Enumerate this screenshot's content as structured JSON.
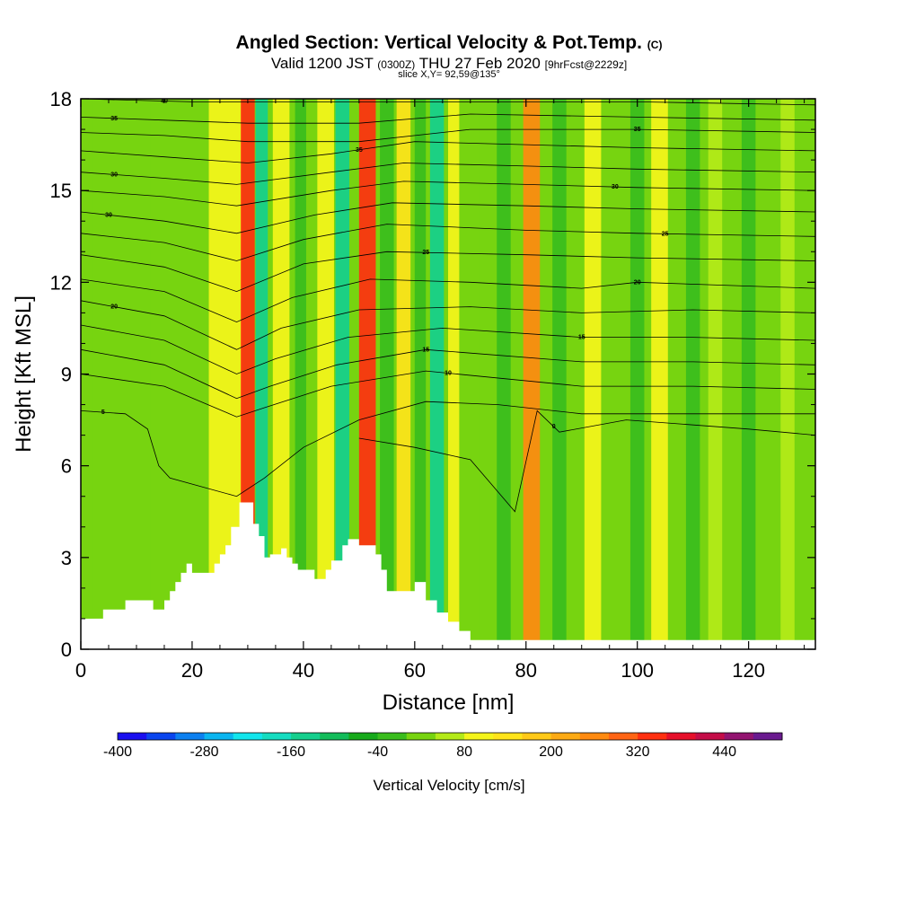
{
  "title": {
    "main": "Angled Section: Vertical Velocity & Pot.Temp.",
    "main_suffix": "(C)",
    "valid_prefix": "Valid 1200 JST",
    "valid_z": "(0300Z)",
    "valid_date": "THU 27 Feb 2020",
    "valid_fcst": "[9hrFcst@2229z]",
    "slice": "slice X,Y= 92,59@135°"
  },
  "chart_data": {
    "type": "heatmap",
    "title": "Angled Section: Vertical Velocity & Pot.Temp.",
    "xlabel": "Distance [nm]",
    "ylabel": "Height [Kft MSL]",
    "xlim": [
      0,
      132
    ],
    "ylim": [
      0,
      18
    ],
    "x_ticks": [
      0,
      20,
      40,
      60,
      80,
      100,
      120
    ],
    "y_ticks": [
      0,
      3,
      6,
      9,
      12,
      15,
      18
    ],
    "background_level": 0,
    "velocity_bands": [
      {
        "x": 4,
        "width": 4,
        "value": 30
      },
      {
        "x": 14,
        "width": 3,
        "value": 20
      },
      {
        "x": 26,
        "width": 6,
        "value": 100
      },
      {
        "x": 30,
        "width": 2.5,
        "value": 320
      },
      {
        "x": 32.5,
        "width": 2.2,
        "value": -160
      },
      {
        "x": 36,
        "width": 3,
        "value": 80
      },
      {
        "x": 39.5,
        "width": 2,
        "value": -40
      },
      {
        "x": 44,
        "width": 3,
        "value": 80
      },
      {
        "x": 47,
        "width": 2.5,
        "value": -160
      },
      {
        "x": 51.5,
        "width": 3,
        "value": 320
      },
      {
        "x": 55,
        "width": 2.5,
        "value": -40
      },
      {
        "x": 58,
        "width": 2.5,
        "value": 120
      },
      {
        "x": 61,
        "width": 2,
        "value": -40
      },
      {
        "x": 64,
        "width": 2.5,
        "value": -160
      },
      {
        "x": 67,
        "width": 2,
        "value": 80
      },
      {
        "x": 73,
        "width": 3,
        "value": 20
      },
      {
        "x": 76,
        "width": 2.5,
        "value": -40
      },
      {
        "x": 81,
        "width": 3,
        "value": 260
      },
      {
        "x": 86,
        "width": 2.5,
        "value": -40
      },
      {
        "x": 92,
        "width": 3,
        "value": 80
      },
      {
        "x": 100,
        "width": 2.5,
        "value": -40
      },
      {
        "x": 104,
        "width": 3,
        "value": 80
      },
      {
        "x": 110,
        "width": 2.5,
        "value": -40
      },
      {
        "x": 114,
        "width": 2.5,
        "value": 60
      },
      {
        "x": 120,
        "width": 2.5,
        "value": -40
      },
      {
        "x": 127,
        "width": 2.5,
        "value": 60
      }
    ],
    "terrain": {
      "x": [
        0,
        4,
        4,
        8,
        8,
        13,
        13,
        15,
        15,
        16,
        16,
        17,
        17,
        18,
        18,
        19,
        19,
        20,
        20,
        24,
        24,
        25,
        25,
        26,
        26,
        27,
        27,
        28.5,
        28.5,
        31,
        31,
        32,
        32,
        33,
        33,
        34,
        34,
        36,
        36,
        37,
        37,
        38,
        38,
        39,
        39,
        42,
        42,
        44,
        44,
        45,
        45,
        47,
        47,
        48,
        48,
        50,
        50,
        53,
        53,
        54,
        54,
        55,
        55,
        60,
        60,
        62,
        62,
        64,
        64,
        66,
        66,
        68,
        68,
        70,
        70,
        72,
        72,
        132
      ],
      "y": [
        1.0,
        1.0,
        1.3,
        1.3,
        1.6,
        1.6,
        1.3,
        1.3,
        1.6,
        1.6,
        1.9,
        1.9,
        2.2,
        2.2,
        2.5,
        2.5,
        2.8,
        2.8,
        2.5,
        2.5,
        2.8,
        2.8,
        3.1,
        3.1,
        3.4,
        3.4,
        4.0,
        4.0,
        4.8,
        4.8,
        4.1,
        4.1,
        3.7,
        3.7,
        3.0,
        3.0,
        3.1,
        3.1,
        3.3,
        3.3,
        3.0,
        3.0,
        2.8,
        2.8,
        2.6,
        2.6,
        2.3,
        2.3,
        2.6,
        2.6,
        2.9,
        2.9,
        3.4,
        3.4,
        3.6,
        3.6,
        3.4,
        3.4,
        3.1,
        3.1,
        2.6,
        2.6,
        1.9,
        1.9,
        2.2,
        2.2,
        1.6,
        1.6,
        1.2,
        1.2,
        0.9,
        0.9,
        0.6,
        0.6,
        0.3,
        0.3,
        0.3,
        0.3
      ]
    },
    "theta_isolines": [
      {
        "label": "40",
        "label_x": 15,
        "points": [
          [
            0,
            18.0
          ],
          [
            20,
            17.9
          ],
          [
            40,
            17.9
          ],
          [
            60,
            17.9
          ],
          [
            80,
            17.9
          ],
          [
            100,
            17.9
          ],
          [
            132,
            17.8
          ]
        ]
      },
      {
        "label": "35",
        "label_x": 6,
        "points": [
          [
            0,
            17.4
          ],
          [
            15,
            17.3
          ],
          [
            30,
            17.2
          ],
          [
            50,
            17.2
          ],
          [
            70,
            17.5
          ],
          [
            100,
            17.4
          ],
          [
            132,
            17.3
          ]
        ]
      },
      {
        "label": "35",
        "label_x": 100,
        "points": [
          [
            0,
            16.9
          ],
          [
            15,
            16.8
          ],
          [
            30,
            16.6
          ],
          [
            50,
            16.6
          ],
          [
            70,
            17.0
          ],
          [
            100,
            17.0
          ],
          [
            132,
            16.9
          ]
        ]
      },
      {
        "label": "35",
        "label_x": 50,
        "points": [
          [
            0,
            16.3
          ],
          [
            15,
            16.1
          ],
          [
            30,
            15.9
          ],
          [
            45,
            16.2
          ],
          [
            60,
            16.6
          ],
          [
            80,
            16.5
          ],
          [
            100,
            16.4
          ],
          [
            132,
            16.3
          ]
        ]
      },
      {
        "label": "30",
        "label_x": 6,
        "points": [
          [
            0,
            15.6
          ],
          [
            15,
            15.4
          ],
          [
            28,
            15.2
          ],
          [
            45,
            15.6
          ],
          [
            58,
            15.9
          ],
          [
            80,
            15.8
          ],
          [
            100,
            15.7
          ],
          [
            132,
            15.6
          ]
        ]
      },
      {
        "label": "30",
        "label_x": 96,
        "points": [
          [
            0,
            15.0
          ],
          [
            15,
            14.8
          ],
          [
            28,
            14.5
          ],
          [
            45,
            15.0
          ],
          [
            58,
            15.3
          ],
          [
            80,
            15.2
          ],
          [
            100,
            15.1
          ],
          [
            132,
            15.0
          ]
        ]
      },
      {
        "label": "30",
        "label_x": 5,
        "points": [
          [
            0,
            14.3
          ],
          [
            15,
            14.0
          ],
          [
            28,
            13.6
          ],
          [
            42,
            14.2
          ],
          [
            56,
            14.6
          ],
          [
            80,
            14.5
          ],
          [
            100,
            14.4
          ],
          [
            132,
            14.3
          ]
        ]
      },
      {
        "label": "25",
        "label_x": 105,
        "points": [
          [
            0,
            13.6
          ],
          [
            15,
            13.3
          ],
          [
            28,
            12.7
          ],
          [
            40,
            13.4
          ],
          [
            55,
            13.9
          ],
          [
            80,
            13.7
          ],
          [
            100,
            13.6
          ],
          [
            132,
            13.5
          ]
        ]
      },
      {
        "label": "25",
        "label_x": 62,
        "points": [
          [
            0,
            12.9
          ],
          [
            15,
            12.5
          ],
          [
            28,
            11.7
          ],
          [
            40,
            12.6
          ],
          [
            55,
            13.0
          ],
          [
            80,
            12.9
          ],
          [
            100,
            12.8
          ],
          [
            132,
            12.7
          ]
        ]
      },
      {
        "label": "20",
        "label_x": 100,
        "points": [
          [
            0,
            12.1
          ],
          [
            15,
            11.7
          ],
          [
            28,
            10.7
          ],
          [
            38,
            11.5
          ],
          [
            52,
            12.1
          ],
          [
            70,
            12.0
          ],
          [
            90,
            11.8
          ],
          [
            100,
            12.0
          ],
          [
            132,
            11.8
          ]
        ]
      },
      {
        "label": "20",
        "label_x": 6,
        "points": [
          [
            0,
            11.4
          ],
          [
            15,
            10.9
          ],
          [
            28,
            9.8
          ],
          [
            36,
            10.5
          ],
          [
            50,
            11.1
          ],
          [
            70,
            11.2
          ],
          [
            90,
            11.0
          ],
          [
            110,
            11.1
          ],
          [
            132,
            11.0
          ]
        ]
      },
      {
        "label": "15",
        "label_x": 90,
        "points": [
          [
            0,
            10.6
          ],
          [
            15,
            10.1
          ],
          [
            28,
            9.0
          ],
          [
            35,
            9.5
          ],
          [
            48,
            10.2
          ],
          [
            65,
            10.5
          ],
          [
            90,
            10.2
          ],
          [
            110,
            10.2
          ],
          [
            132,
            10.1
          ]
        ]
      },
      {
        "label": "15",
        "label_x": 62,
        "points": [
          [
            0,
            9.8
          ],
          [
            15,
            9.3
          ],
          [
            28,
            8.2
          ],
          [
            34,
            8.6
          ],
          [
            46,
            9.3
          ],
          [
            62,
            9.8
          ],
          [
            90,
            9.4
          ],
          [
            110,
            9.4
          ],
          [
            132,
            9.3
          ]
        ]
      },
      {
        "label": "10",
        "label_x": 66,
        "points": [
          [
            0,
            9.0
          ],
          [
            15,
            8.6
          ],
          [
            28,
            7.6
          ],
          [
            33,
            7.9
          ],
          [
            45,
            8.6
          ],
          [
            62,
            9.1
          ],
          [
            90,
            8.6
          ],
          [
            110,
            8.6
          ],
          [
            132,
            8.5
          ]
        ]
      },
      {
        "label": "5",
        "label_x": 4,
        "points": [
          [
            0,
            7.8
          ],
          [
            8,
            7.7
          ],
          [
            12,
            7.2
          ],
          [
            14,
            6.0
          ],
          [
            16,
            5.6
          ],
          [
            22,
            5.3
          ],
          [
            28,
            5.0
          ],
          [
            33,
            5.6
          ],
          [
            40,
            6.6
          ],
          [
            50,
            7.5
          ],
          [
            62,
            8.1
          ],
          [
            75,
            8.0
          ],
          [
            90,
            7.7
          ],
          [
            110,
            7.7
          ],
          [
            132,
            7.7
          ]
        ]
      },
      {
        "label": "0",
        "label_x": 85,
        "points": [
          [
            50,
            6.9
          ],
          [
            60,
            6.6
          ],
          [
            70,
            6.2
          ],
          [
            78,
            4.5
          ],
          [
            82,
            7.8
          ],
          [
            86,
            7.1
          ],
          [
            98,
            7.5
          ],
          [
            120,
            7.2
          ],
          [
            132,
            7.0
          ]
        ]
      }
    ],
    "colorbar": {
      "label": "Vertical Velocity [cm/s]",
      "ticks": [
        "-400",
        "-280",
        "-160",
        "-40",
        "80",
        "200",
        "320",
        "440"
      ],
      "levels": [
        -400,
        -360,
        -320,
        -280,
        -240,
        -200,
        -160,
        -120,
        -80,
        -40,
        0,
        40,
        80,
        120,
        160,
        200,
        240,
        280,
        320,
        360,
        400,
        440,
        480
      ],
      "colors": [
        "#1a10f0",
        "#0a45ee",
        "#0c80f0",
        "#0ab5f0",
        "#12e5ec",
        "#15dcc0",
        "#15cf8d",
        "#13bc5a",
        "#17aa1b",
        "#3abd1d",
        "#77d410",
        "#b4ea18",
        "#f5f51a",
        "#ffe41a",
        "#ffc918",
        "#fcaa14",
        "#ff8a10",
        "#ff6414",
        "#ff3010",
        "#e6102a",
        "#c40d48",
        "#931470",
        "#6a1a8f"
      ]
    }
  }
}
